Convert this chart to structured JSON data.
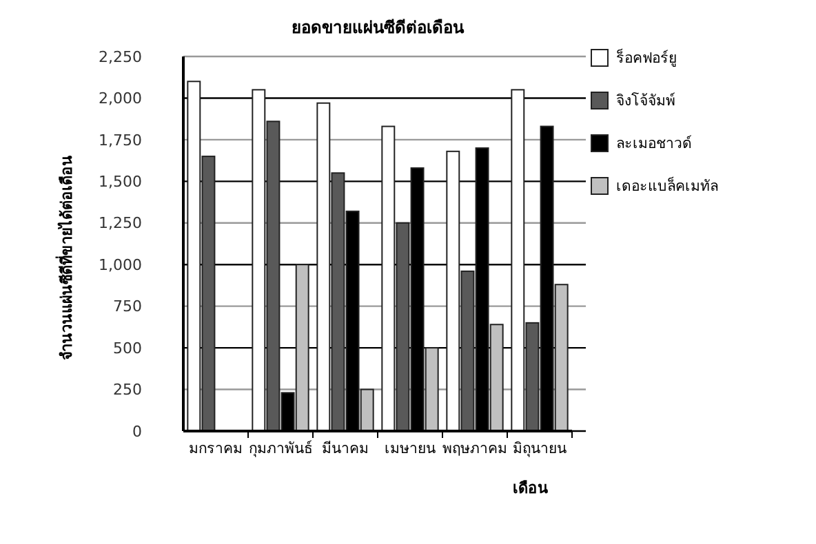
{
  "chart_data": {
    "type": "bar",
    "title": "ยอดขายแผ่นซีดีต่อเดือน",
    "xlabel": "เดือน",
    "ylabel": "จำนวนแผ่นซีดีที่ขายได้ต่อเดือน",
    "categories": [
      "มกราคม",
      "กุมภาพันธ์",
      "มีนาคม",
      "เมษายน",
      "พฤษภาคม",
      "มิถุนายน"
    ],
    "series": [
      {
        "name": "ร็อคฟอร์ยู",
        "color": "#ffffff",
        "values": [
          2100,
          2050,
          1970,
          1830,
          1680,
          2050
        ]
      },
      {
        "name": "จิงโจ้จัมพ์",
        "color": "#595959",
        "values": [
          1650,
          1860,
          1550,
          1250,
          960,
          650
        ]
      },
      {
        "name": "ละเมอชาวด์",
        "color": "#000000",
        "values": [
          0,
          230,
          1320,
          1580,
          1700,
          1830
        ]
      },
      {
        "name": "เดอะแบล็คเมทัล",
        "color": "#c0c0c0",
        "values": [
          0,
          1000,
          250,
          500,
          640,
          880
        ]
      }
    ],
    "ylim": [
      0,
      2250
    ],
    "yticks": [
      {
        "value": 0,
        "label": "0"
      },
      {
        "value": 250,
        "label": "250"
      },
      {
        "value": 500,
        "label": "500"
      },
      {
        "value": 750,
        "label": "750"
      },
      {
        "value": 1000,
        "label": "1,000"
      },
      {
        "value": 1250,
        "label": "1,250"
      },
      {
        "value": 1500,
        "label": "1,500"
      },
      {
        "value": 1750,
        "label": "1,750"
      },
      {
        "value": 2000,
        "label": "2,000"
      },
      {
        "value": 2250,
        "label": "2,250"
      }
    ],
    "grid": "y",
    "legend": "right"
  }
}
